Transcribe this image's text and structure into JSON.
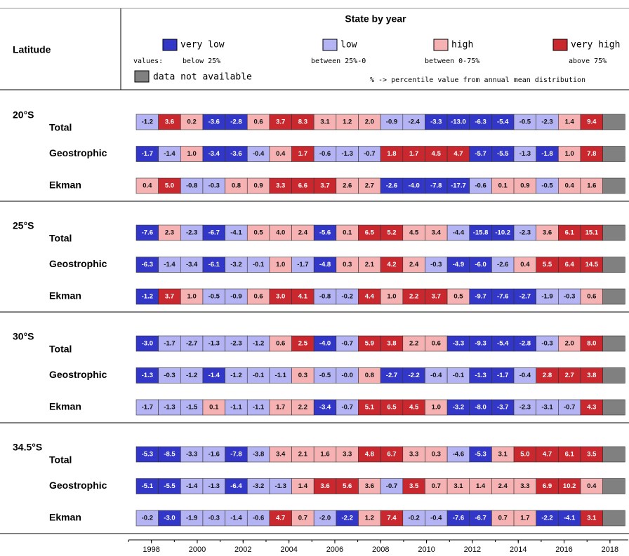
{
  "header": {
    "latitude": "Latitude",
    "title": "State by year",
    "values_label": "values:",
    "legend": [
      {
        "label": "very low",
        "range": "below 25%",
        "color": "#3337c8"
      },
      {
        "label": "low",
        "range": "between 25%-0",
        "color": "#b4b4f4"
      },
      {
        "label": "high",
        "range": "between 0-75%",
        "color": "#f6b2b2"
      },
      {
        "label": "very high",
        "range": "above 75%",
        "color": "#c9282f"
      }
    ],
    "na": {
      "label": "data not available",
      "color": "#808080"
    },
    "note": "% -> percentile value from annual mean distribution"
  },
  "groups": [
    {
      "latitude": "20°S",
      "rows": [
        {
          "name": "Total",
          "values": [
            "-1.2",
            "3.6",
            "0.2",
            "-3.6",
            "-2.8",
            "0.6",
            "3.7",
            "8.3",
            "3.1",
            "1.2",
            "2.0",
            "-0.9",
            "-2.4",
            "-3.3",
            "-13.0",
            "-6.3",
            "-5.4",
            "-0.5",
            "-2.3",
            "1.4",
            "9.4",
            null
          ],
          "levels": [
            1,
            3,
            2,
            0,
            0,
            2,
            3,
            3,
            2,
            2,
            2,
            1,
            1,
            0,
            0,
            0,
            0,
            1,
            1,
            2,
            3,
            null
          ]
        },
        {
          "name": "Geostrophic",
          "values": [
            "-1.7",
            "-1.4",
            "1.0",
            "-3.4",
            "-3.6",
            "-0.4",
            "0.4",
            "1.7",
            "-0.6",
            "-1.3",
            "-0.7",
            "1.8",
            "1.7",
            "4.5",
            "4.7",
            "-5.7",
            "-5.5",
            "-1.3",
            "-1.8",
            "1.0",
            "7.8",
            null
          ],
          "levels": [
            0,
            1,
            2,
            0,
            0,
            1,
            2,
            3,
            1,
            1,
            1,
            3,
            3,
            3,
            3,
            0,
            0,
            1,
            0,
            2,
            3,
            null
          ]
        },
        {
          "name": "Ekman",
          "values": [
            "0.4",
            "5.0",
            "-0.8",
            "-0.3",
            "0.8",
            "0.9",
            "3.3",
            "6.6",
            "3.7",
            "2.6",
            "2.7",
            "-2.6",
            "-4.0",
            "-7.8",
            "-17.7",
            "-0.6",
            "0.1",
            "0.9",
            "-0.5",
            "0.4",
            "1.6",
            null
          ],
          "levels": [
            2,
            3,
            1,
            1,
            2,
            2,
            3,
            3,
            3,
            2,
            2,
            0,
            0,
            0,
            0,
            1,
            2,
            2,
            1,
            2,
            2,
            null
          ]
        }
      ]
    },
    {
      "latitude": "25°S",
      "rows": [
        {
          "name": "Total",
          "values": [
            "-7.6",
            "2.3",
            "-2.3",
            "-6.7",
            "-4.1",
            "0.5",
            "4.0",
            "2.4",
            "-5.6",
            "0.1",
            "6.5",
            "5.2",
            "4.5",
            "3.4",
            "-4.4",
            "-15.8",
            "-10.2",
            "-2.3",
            "3.6",
            "6.1",
            "15.1",
            null
          ],
          "levels": [
            0,
            2,
            1,
            0,
            1,
            2,
            2,
            2,
            0,
            2,
            3,
            3,
            2,
            2,
            1,
            0,
            0,
            1,
            2,
            3,
            3,
            null
          ]
        },
        {
          "name": "Geostrophic",
          "values": [
            "-6.3",
            "-1.4",
            "-3.4",
            "-6.1",
            "-3.2",
            "-0.1",
            "1.0",
            "-1.7",
            "-4.8",
            "0.3",
            "2.1",
            "4.2",
            "2.4",
            "-0.3",
            "-4.9",
            "-6.0",
            "-2.6",
            "0.4",
            "5.5",
            "6.4",
            "14.5",
            null
          ],
          "levels": [
            0,
            1,
            1,
            0,
            1,
            1,
            2,
            1,
            0,
            2,
            2,
            3,
            2,
            1,
            0,
            0,
            1,
            2,
            3,
            3,
            3,
            null
          ]
        },
        {
          "name": "Ekman",
          "values": [
            "-1.2",
            "3.7",
            "1.0",
            "-0.5",
            "-0.9",
            "0.6",
            "3.0",
            "4.1",
            "-0.8",
            "-0.2",
            "4.4",
            "1.0",
            "2.2",
            "3.7",
            "0.5",
            "-9.7",
            "-7.6",
            "-2.7",
            "-1.9",
            "-0.3",
            "0.6",
            null
          ],
          "levels": [
            0,
            3,
            2,
            1,
            1,
            2,
            3,
            3,
            1,
            1,
            3,
            2,
            3,
            3,
            2,
            0,
            0,
            0,
            1,
            1,
            2,
            null
          ]
        }
      ]
    },
    {
      "latitude": "30°S",
      "rows": [
        {
          "name": "Total",
          "values": [
            "-3.0",
            "-1.7",
            "-2.7",
            "-1.3",
            "-2.3",
            "-1.2",
            "0.6",
            "2.5",
            "-4.0",
            "-0.7",
            "5.9",
            "3.8",
            "2.2",
            "0.6",
            "-3.3",
            "-9.3",
            "-5.4",
            "-2.8",
            "-0.3",
            "2.0",
            "8.0",
            null
          ],
          "levels": [
            0,
            1,
            1,
            1,
            1,
            1,
            2,
            3,
            0,
            1,
            3,
            3,
            2,
            2,
            0,
            0,
            0,
            0,
            1,
            2,
            3,
            null
          ]
        },
        {
          "name": "Geostrophic",
          "values": [
            "-1.3",
            "-0.3",
            "-1.2",
            "-1.4",
            "-1.2",
            "-0.1",
            "-1.1",
            "0.3",
            "-0.5",
            "-0.0",
            "0.8",
            "-2.7",
            "-2.2",
            "-0.4",
            "-0.1",
            "-1.3",
            "-1.7",
            "-0.4",
            "2.8",
            "2.7",
            "3.8",
            null
          ],
          "levels": [
            0,
            1,
            1,
            0,
            1,
            1,
            1,
            2,
            1,
            1,
            2,
            0,
            0,
            1,
            1,
            0,
            0,
            1,
            3,
            3,
            3,
            null
          ]
        },
        {
          "name": "Ekman",
          "values": [
            "-1.7",
            "-1.3",
            "-1.5",
            "0.1",
            "-1.1",
            "-1.1",
            "1.7",
            "2.2",
            "-3.4",
            "-0.7",
            "5.1",
            "6.5",
            "4.5",
            "1.0",
            "-3.2",
            "-8.0",
            "-3.7",
            "-2.3",
            "-3.1",
            "-0.7",
            "4.3",
            null
          ],
          "levels": [
            1,
            1,
            1,
            2,
            1,
            1,
            2,
            2,
            0,
            1,
            3,
            3,
            3,
            2,
            0,
            0,
            0,
            1,
            1,
            1,
            3,
            null
          ]
        }
      ]
    },
    {
      "latitude": "34.5°S",
      "rows": [
        {
          "name": "Total",
          "values": [
            "-5.3",
            "-8.5",
            "-3.3",
            "-1.6",
            "-7.8",
            "-3.8",
            "3.4",
            "2.1",
            "1.6",
            "3.3",
            "4.8",
            "6.7",
            "3.3",
            "0.3",
            "-4.6",
            "-5.3",
            "3.1",
            "5.0",
            "4.7",
            "6.1",
            "3.5",
            null
          ],
          "levels": [
            0,
            0,
            1,
            1,
            0,
            1,
            2,
            2,
            2,
            2,
            3,
            3,
            2,
            2,
            1,
            0,
            2,
            3,
            3,
            3,
            3,
            null
          ]
        },
        {
          "name": "Geostrophic",
          "values": [
            "-5.1",
            "-5.5",
            "-1.4",
            "-1.3",
            "-6.4",
            "-3.2",
            "-1.3",
            "1.4",
            "3.6",
            "5.6",
            "3.6",
            "-0.7",
            "3.5",
            "0.7",
            "3.1",
            "1.4",
            "2.4",
            "3.3",
            "6.9",
            "10.2",
            "0.4",
            null
          ],
          "levels": [
            0,
            0,
            1,
            1,
            0,
            1,
            1,
            2,
            3,
            3,
            2,
            1,
            3,
            2,
            2,
            2,
            2,
            2,
            3,
            3,
            2,
            null
          ]
        },
        {
          "name": "Ekman",
          "values": [
            "-0.2",
            "-3.0",
            "-1.9",
            "-0.3",
            "-1.4",
            "-0.6",
            "4.7",
            "0.7",
            "-2.0",
            "-2.2",
            "1.2",
            "7.4",
            "-0.2",
            "-0.4",
            "-7.6",
            "-6.7",
            "0.7",
            "1.7",
            "-2.2",
            "-4.1",
            "3.1",
            null
          ],
          "levels": [
            1,
            0,
            1,
            1,
            1,
            1,
            3,
            2,
            1,
            0,
            2,
            3,
            1,
            1,
            0,
            0,
            2,
            2,
            0,
            0,
            3,
            null
          ]
        }
      ]
    }
  ],
  "axis": {
    "xlim": [
      1997,
      2018.8
    ],
    "xticks": [
      1998,
      2000,
      2002,
      2004,
      2006,
      2008,
      2010,
      2012,
      2014,
      2016,
      2018
    ]
  }
}
